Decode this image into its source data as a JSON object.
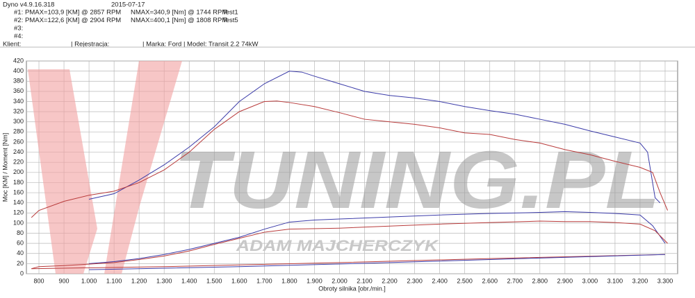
{
  "header": {
    "app": "Dyno v4.9.16.318",
    "date": "2015-07-17",
    "runs": [
      [
        "#1:",
        "PMAX=103,9 [KM] @ 2857 RPM",
        "NMAX=340,9 [Nm] @ 1744 RPM",
        "Test1"
      ],
      [
        "#2:",
        "PMAX=122,6 [KM] @ 2904 RPM",
        "NMAX=400,1 [Nm] @ 1808 RPM",
        "Test5"
      ],
      [
        "#3:"
      ],
      [
        "#4:"
      ]
    ],
    "client": "Klient:",
    "registration": "| Rejestracja:",
    "vehicle": "| Marka: Ford | Model: Transit 2.2 74kW"
  },
  "chart_data": {
    "type": "line",
    "watermark": "TUNING.PL",
    "watermark_subtitle": "ADAM MAJCHERCZYK",
    "x_label": "Obroty silnika [obr./min.]",
    "y_label": "Moc [KM] / Moment [Nm]",
    "xlim": [
      750,
      3350
    ],
    "ylim": [
      0,
      420
    ],
    "grid": true,
    "xticks": [
      800,
      900,
      {
        "value": 1000,
        "label": "1.000"
      },
      {
        "value": 1100,
        "label": "1.100"
      },
      {
        "value": 1200,
        "label": "1.200"
      },
      {
        "value": 1300,
        "label": "1.300"
      },
      {
        "value": 1400,
        "label": "1.400"
      },
      {
        "value": 1500,
        "label": "1.500"
      },
      {
        "value": 1600,
        "label": "1.600"
      },
      {
        "value": 1700,
        "label": "1.700"
      },
      {
        "value": 1800,
        "label": "1.800"
      },
      {
        "value": 1900,
        "label": "1.900"
      },
      {
        "value": 2000,
        "label": "2.000"
      },
      {
        "value": 2100,
        "label": "2.100"
      },
      {
        "value": 2200,
        "label": "2.200"
      },
      {
        "value": 2300,
        "label": "2.300"
      },
      {
        "value": 2400,
        "label": "2.400"
      },
      {
        "value": 2500,
        "label": "2.500"
      },
      {
        "value": 2600,
        "label": "2.600"
      },
      {
        "value": 2700,
        "label": "2.700"
      },
      {
        "value": 2800,
        "label": "2.800"
      },
      {
        "value": 2900,
        "label": "2.900"
      },
      {
        "value": 3000,
        "label": "3.000"
      },
      {
        "value": 3100,
        "label": "3.100"
      },
      {
        "value": 3200,
        "label": "3.200"
      },
      {
        "value": 3300,
        "label": "3.300"
      }
    ],
    "yticks": [
      0,
      20,
      40,
      60,
      80,
      100,
      120,
      140,
      160,
      180,
      200,
      220,
      240,
      260,
      280,
      300,
      320,
      340,
      360,
      380,
      400,
      420
    ],
    "series": [
      {
        "color": "#3a3aa8",
        "x": [
          1000,
          1100,
          1200,
          1300,
          1400,
          1500,
          1600,
          1700,
          1800,
          1850,
          1900,
          2000,
          2100,
          2200,
          2300,
          2400,
          2500,
          2600,
          2700,
          2800,
          2900,
          3000,
          3100,
          3200,
          3230,
          3260,
          3280
        ],
        "values": [
          147,
          158,
          185,
          215,
          250,
          290,
          340,
          375,
          400,
          398,
          390,
          375,
          360,
          352,
          347,
          340,
          330,
          322,
          315,
          305,
          295,
          282,
          270,
          258,
          240,
          150,
          140
        ]
      },
      {
        "color": "#b83a3a",
        "x": [
          770,
          800,
          900,
          1000,
          1100,
          1200,
          1300,
          1400,
          1500,
          1600,
          1700,
          1750,
          1800,
          1900,
          2000,
          2100,
          2200,
          2300,
          2400,
          2500,
          2600,
          2700,
          2800,
          2900,
          3000,
          3100,
          3200,
          3250,
          3280,
          3310
        ],
        "values": [
          111,
          125,
          143,
          155,
          163,
          180,
          205,
          240,
          285,
          320,
          340,
          341,
          338,
          330,
          318,
          305,
          300,
          295,
          288,
          278,
          275,
          265,
          258,
          245,
          235,
          222,
          210,
          200,
          160,
          125
        ]
      },
      {
        "color": "#3a3aa8",
        "x": [
          1000,
          1100,
          1200,
          1300,
          1400,
          1500,
          1600,
          1700,
          1800,
          1900,
          2000,
          2200,
          2400,
          2600,
          2800,
          2900,
          3000,
          3100,
          3200,
          3250,
          3300
        ],
        "values": [
          20,
          24,
          30,
          38,
          48,
          60,
          72,
          88,
          102,
          106,
          108,
          112,
          116,
          119,
          121,
          122.6,
          121,
          119,
          116,
          95,
          60
        ]
      },
      {
        "color": "#b83a3a",
        "x": [
          770,
          800,
          900,
          1000,
          1100,
          1200,
          1300,
          1400,
          1500,
          1600,
          1700,
          1800,
          2000,
          2200,
          2400,
          2600,
          2800,
          2900,
          3000,
          3100,
          3200,
          3260,
          3310
        ],
        "values": [
          10,
          14,
          16,
          19,
          22,
          28,
          35,
          45,
          58,
          70,
          82,
          88,
          90,
          94,
          98,
          101,
          103.9,
          103,
          103,
          101,
          98,
          85,
          60
        ]
      },
      {
        "color": "#b83a3a",
        "x": [
          770,
          1300,
          2000,
          2600,
          3300
        ],
        "values": [
          10,
          14,
          22,
          30,
          38
        ]
      },
      {
        "color": "#3a3aa8",
        "x": [
          1000,
          1600,
          2200,
          2800,
          3300
        ],
        "values": [
          8,
          14,
          22,
          31,
          38
        ]
      }
    ]
  }
}
